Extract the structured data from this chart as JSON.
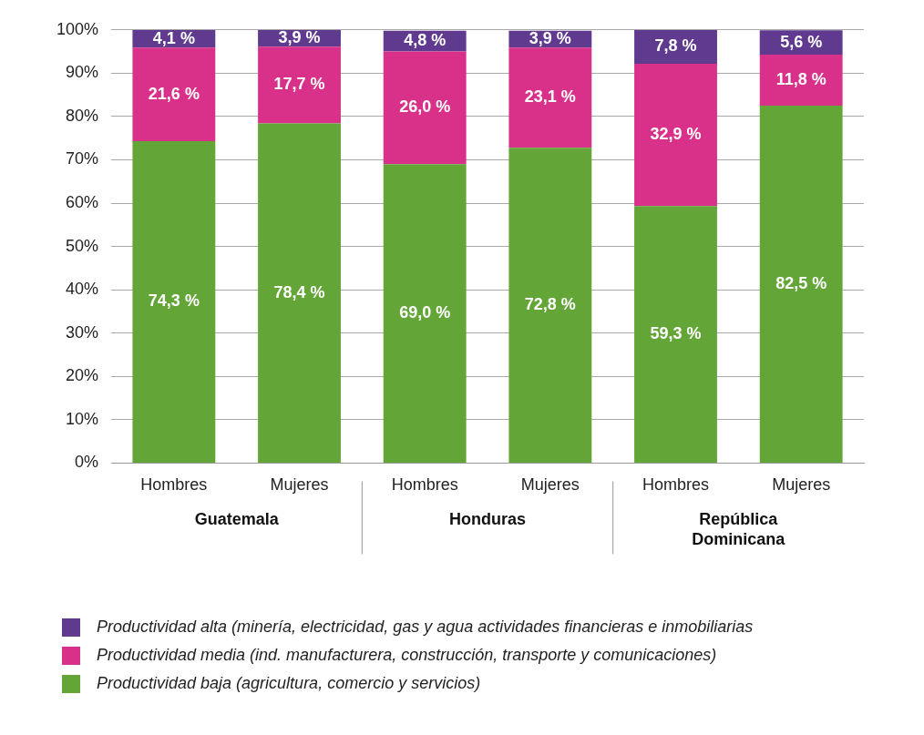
{
  "chart_data": {
    "type": "bar",
    "stacked": true,
    "categories": [
      "Hombres",
      "Mujeres",
      "Hombres",
      "Mujeres",
      "Hombres",
      "Mujeres"
    ],
    "annotations": [
      "Guatemala",
      "Honduras",
      "República Dominicana"
    ],
    "series": [
      {
        "name": "Productividad baja (agricultura, comercio y servicios)",
        "color": "#63a537",
        "values": [
          74.3,
          78.4,
          69.0,
          72.8,
          59.3,
          82.5
        ],
        "value_labels": [
          "74,3 %",
          "78,4 %",
          "69,0 %",
          "72,8 %",
          "59,3 %",
          "82,5 %"
        ]
      },
      {
        "name": "Productividad media (ind. manufacturera, construcción, transporte y comunicaciones)",
        "color": "#d9318a",
        "values": [
          21.6,
          17.7,
          26.0,
          23.1,
          32.9,
          11.8
        ],
        "value_labels": [
          "21,6 %",
          "17,7 %",
          "26,0 %",
          "23,1 %",
          "32,9 %",
          "11,8 %"
        ]
      },
      {
        "name": "Productividad alta (minería, electricidad, gas y agua actividades financieras e inmobiliarias",
        "color": "#5f3a8f",
        "values": [
          4.1,
          3.9,
          4.8,
          3.9,
          7.8,
          5.6
        ],
        "value_labels": [
          "4,1 %",
          "3,9 %",
          "4,8 %",
          "3,9 %",
          "7,8 %",
          "5,6 %"
        ]
      }
    ],
    "ylim": [
      0,
      100
    ],
    "yticks": [
      {
        "value": 0,
        "label": "0%"
      },
      {
        "value": 10,
        "label": "10%"
      },
      {
        "value": 20,
        "label": "20%"
      },
      {
        "value": 30,
        "label": "30%"
      },
      {
        "value": 40,
        "label": "40%"
      },
      {
        "value": 50,
        "label": "50%"
      },
      {
        "value": 60,
        "label": "60%"
      },
      {
        "value": 70,
        "label": "70%"
      },
      {
        "value": 80,
        "label": "80%"
      },
      {
        "value": 90,
        "label": "90%"
      },
      {
        "value": 100,
        "label": "100%"
      }
    ],
    "grid": "y",
    "legend": "bottom"
  }
}
